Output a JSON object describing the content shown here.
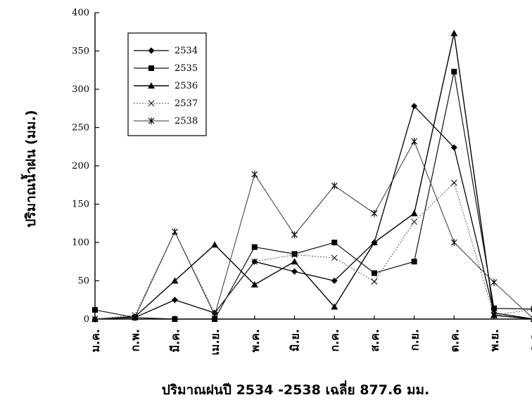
{
  "chart_data": {
    "type": "line",
    "title": "",
    "xlabel": "ปริมาณฝนปี 2534 -2538 เฉลี่ย  877.6  มม.",
    "ylabel": "ปริมาณน้ำฝน  (มม.)",
    "ylim": [
      0,
      400
    ],
    "yticks": [
      0,
      50,
      100,
      150,
      200,
      250,
      300,
      350,
      400
    ],
    "grid": false,
    "legend": "top-left",
    "categories": [
      "ม.ค.",
      "ก.พ.",
      "มี.ค.",
      "เม.ย.",
      "พ.ค.",
      "มิ.ย.",
      "ก.ค.",
      "ส.ค.",
      "ก.ย.",
      "ต.ค.",
      "พ.ย.",
      "ธ.ค."
    ],
    "series": [
      {
        "name": "2534",
        "marker": "diamond",
        "values": [
          0,
          2,
          25,
          8,
          75,
          62,
          50,
          100,
          278,
          224,
          8,
          0
        ]
      },
      {
        "name": "2535",
        "marker": "square",
        "values": [
          12,
          2,
          0,
          0,
          94,
          85,
          100,
          60,
          75,
          323,
          14,
          13
        ]
      },
      {
        "name": "2536",
        "marker": "triangle",
        "values": [
          0,
          3,
          50,
          97,
          45,
          75,
          16,
          100,
          138,
          373,
          5,
          0
        ]
      },
      {
        "name": "2537",
        "marker": "x",
        "values": [
          0,
          5,
          114,
          8,
          75,
          84,
          80,
          49,
          127,
          178,
          5,
          13
        ]
      },
      {
        "name": "2538",
        "marker": "asterisk",
        "values": [
          0,
          2,
          114,
          5,
          189,
          110,
          174,
          138,
          232,
          100,
          48,
          0
        ]
      }
    ]
  }
}
